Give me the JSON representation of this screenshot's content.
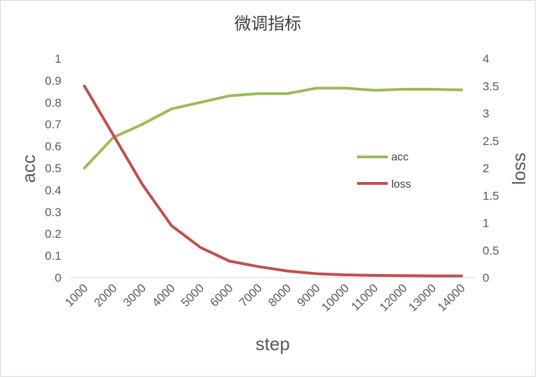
{
  "chart_data": {
    "type": "line",
    "title": "微调指标",
    "xlabel": "step",
    "ylabel_left": "acc",
    "ylabel_right": "loss",
    "categories": [
      "1000",
      "2000",
      "3000",
      "4000",
      "5000",
      "6000",
      "7000",
      "8000",
      "9000",
      "10000",
      "11000",
      "12000",
      "13000",
      "14000"
    ],
    "x_ticks": [
      "1000",
      "2000",
      "3000",
      "4000",
      "5000",
      "6000",
      "7000",
      "8000",
      "9000",
      "10000",
      "11000",
      "12000",
      "13000",
      "14000"
    ],
    "y_left_ticks": [
      "0",
      "0.1",
      "0.2",
      "0.3",
      "0.4",
      "0.5",
      "0.6",
      "0.7",
      "0.8",
      "0.9",
      "1"
    ],
    "y_right_ticks": [
      "0",
      "0.5",
      "1",
      "1.5",
      "2",
      "2.5",
      "3",
      "3.5",
      "4"
    ],
    "ylim_left": [
      0,
      1
    ],
    "ylim_right": [
      0,
      4
    ],
    "grid": false,
    "legend_position": "right",
    "series": [
      {
        "name": "acc",
        "axis": "left",
        "color": "#9bbb59",
        "values": [
          0.5,
          0.64,
          0.7,
          0.77,
          0.8,
          0.83,
          0.84,
          0.84,
          0.865,
          0.865,
          0.855,
          0.86,
          0.86,
          0.857
        ]
      },
      {
        "name": "loss",
        "axis": "right",
        "color": "#c0504d",
        "values": [
          3.5,
          2.6,
          1.7,
          0.95,
          0.55,
          0.3,
          0.2,
          0.12,
          0.07,
          0.05,
          0.04,
          0.035,
          0.03,
          0.03
        ]
      }
    ]
  }
}
